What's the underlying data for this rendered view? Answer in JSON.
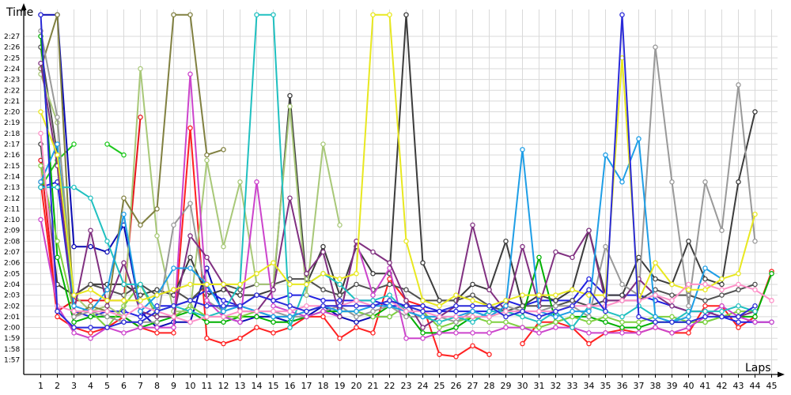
{
  "chart_data": {
    "type": "line",
    "xlabel": "Laps",
    "ylabel": "Time",
    "x": [
      1,
      2,
      3,
      4,
      5,
      6,
      7,
      8,
      9,
      10,
      11,
      12,
      13,
      14,
      15,
      16,
      17,
      18,
      19,
      20,
      21,
      22,
      23,
      24,
      25,
      26,
      27,
      28,
      29,
      30,
      31,
      32,
      33,
      34,
      35,
      36,
      37,
      38,
      39,
      40,
      41,
      42,
      43,
      44,
      45
    ],
    "x_ticks": [
      "1",
      "2",
      "3",
      "4",
      "5",
      "6",
      "7",
      "8",
      "9",
      "10",
      "11",
      "12",
      "13",
      "14",
      "15",
      "16",
      "17",
      "18",
      "19",
      "20",
      "21",
      "22",
      "23",
      "24",
      "25",
      "26",
      "27",
      "28",
      "29",
      "30",
      "31",
      "32",
      "33",
      "34",
      "35",
      "36",
      "37",
      "38",
      "39",
      "40",
      "41",
      "42",
      "43",
      "44",
      "45"
    ],
    "y_ticks": [
      "1:57",
      "1:58",
      "1:59",
      "2:00",
      "2:01",
      "2:02",
      "2:03",
      "2:04",
      "2:05",
      "2:06",
      "2:07",
      "2:08",
      "2:09",
      "2:10",
      "2:11",
      "2:12",
      "2:13",
      "2:14",
      "2:15",
      "2:16",
      "2:17",
      "2:18",
      "2:19",
      "2:20",
      "2:21",
      "2:22",
      "2:23",
      "2:24",
      "2:25",
      "2:26",
      "2:27"
    ],
    "y_tick_values": [
      117,
      118,
      119,
      120,
      121,
      122,
      123,
      124,
      125,
      126,
      127,
      128,
      129,
      130,
      131,
      132,
      133,
      134,
      135,
      136,
      137,
      138,
      139,
      140,
      141,
      142,
      143,
      144,
      145,
      146,
      147
    ],
    "y_unit": "seconds",
    "xlim": [
      0.5,
      45.5
    ],
    "ylim": [
      115.5,
      149
    ],
    "grid": true,
    "legend": "none",
    "series": [
      {
        "color": "#e8121a",
        "values": [
          135.5,
          121.5,
          122.5,
          122.5,
          122.5,
          122.5,
          139.5,
          null,
          null,
          null,
          null,
          null,
          null,
          null,
          null,
          null,
          null,
          null,
          null,
          null,
          null,
          null,
          null,
          null,
          null,
          null,
          null,
          null,
          null,
          null,
          null,
          null,
          null,
          null,
          null,
          null,
          null,
          null,
          null,
          null,
          null,
          null,
          null,
          null,
          null
        ]
      },
      {
        "color": "#1ec81e",
        "values": [
          133,
          135.5,
          137,
          null,
          137,
          136,
          null,
          null,
          null,
          null,
          null,
          null,
          null,
          null,
          null,
          null,
          null,
          null,
          null,
          null,
          null,
          null,
          null,
          null,
          null,
          null,
          null,
          null,
          null,
          null,
          null,
          null,
          null,
          null,
          null,
          null,
          null,
          null,
          null,
          null,
          null,
          null,
          null,
          null,
          null
        ]
      },
      {
        "color": "#ff2020",
        "values": [
          133.5,
          121,
          120,
          119.5,
          120,
          121,
          120,
          119.5,
          119.5,
          138.5,
          119,
          118.5,
          119,
          120,
          119.5,
          120,
          121,
          121,
          119,
          120,
          119.5,
          124.5,
          122.5,
          122,
          117.5,
          117.3,
          118.3,
          117.5,
          null,
          118.5,
          120.5,
          120.5,
          120,
          118.5,
          119.5,
          119.8,
          119.5,
          120,
          119.5,
          119.5,
          122,
          122,
          120,
          121,
          125.2
        ]
      },
      {
        "color": "#0a0ab4",
        "values": [
          149,
          149,
          127.5,
          127.5,
          127,
          129.5,
          121.5,
          120,
          120.5,
          120.5,
          125.5,
          121,
          120.5,
          121,
          121,
          120.5,
          121,
          122,
          121,
          120.5,
          121,
          121,
          null,
          null,
          null,
          null,
          null,
          null,
          null,
          null,
          null,
          null,
          null,
          null,
          null,
          null,
          null,
          null,
          null,
          null,
          null,
          null,
          null,
          null,
          null
        ]
      },
      {
        "color": "#2020e0",
        "values": [
          133,
          133.5,
          121.5,
          121,
          121.5,
          121.5,
          121,
          122,
          122,
          122.5,
          123.5,
          122.5,
          122,
          123,
          122.5,
          123,
          123,
          122.5,
          122.5,
          122.5,
          122.5,
          122,
          122,
          122,
          121.5,
          121.5,
          121.5,
          121.5,
          122.5,
          122,
          122.5,
          122.5,
          122.5,
          124.5,
          123,
          123,
          123,
          122.5,
          122,
          121.5,
          121.5,
          121,
          120.5,
          120.5,
          120.5
        ]
      },
      {
        "color": "#3c3c3c",
        "values": [
          137,
          124,
          123,
          124,
          124,
          124,
          123,
          123.5,
          123,
          126.5,
          123,
          123.5,
          123,
          123,
          123.5,
          141.5,
          124,
          127.5,
          123,
          127.5,
          125,
          125,
          149,
          126,
          122.5,
          122.5,
          124,
          123.5,
          128,
          122,
          123,
          122.5,
          123.5,
          129,
          123,
          123,
          126.5,
          124.5,
          124,
          128,
          124.5,
          124,
          133.5,
          140,
          null
        ]
      },
      {
        "color": "#505050",
        "values": [
          146,
          136,
          123,
          124,
          123.5,
          123,
          124,
          123,
          123.5,
          122.5,
          124,
          124,
          123.5,
          124,
          124,
          124.5,
          124.5,
          123.5,
          123,
          124,
          123.5,
          124,
          123.5,
          122.5,
          122.5,
          122.5,
          123,
          122,
          121.5,
          122,
          122,
          122,
          122.5,
          122,
          122.5,
          122.5,
          122.5,
          123.5,
          123,
          123,
          122.5,
          123,
          123.5,
          124,
          null
        ]
      },
      {
        "color": "#00b000",
        "values": [
          147,
          126.5,
          120.5,
          121,
          121,
          121,
          120,
          120.5,
          121,
          121.5,
          120.5,
          120.5,
          121,
          121,
          120.5,
          120.5,
          121,
          121.5,
          121.5,
          121.5,
          121,
          122,
          121.5,
          119.5,
          119.5,
          120,
          121,
          121,
          121.5,
          121,
          126.5,
          120.5,
          121,
          121,
          120.5,
          120,
          120,
          120.5,
          120.5,
          120.5,
          120.5,
          121,
          121,
          121,
          125
        ]
      },
      {
        "color": "#7fd040",
        "values": [
          135,
          128,
          121.5,
          121.5,
          120,
          122,
          124,
          121,
          121,
          122,
          121,
          121,
          121,
          121.5,
          121,
          121,
          121.5,
          122,
          121.5,
          121.5,
          121,
          121,
          122,
          121.5,
          120,
          120.5,
          121,
          120.5,
          120.5,
          120,
          120,
          120.5,
          121,
          120.5,
          121,
          120.5,
          120.5,
          121,
          121,
          120.5,
          120.5,
          121,
          121.5,
          121.5,
          null
        ]
      },
      {
        "color": "#a8c878",
        "values": [
          143.5,
          139,
          123,
          121.5,
          122,
          121,
          144,
          128.5,
          121.5,
          121.5,
          135.5,
          127.5,
          133.5,
          124,
          124,
          140.5,
          123,
          137,
          129.5,
          null,
          null,
          null,
          null,
          null,
          null,
          null,
          null,
          null,
          null,
          null,
          null,
          null,
          null,
          null,
          null,
          null,
          null,
          null,
          null,
          null,
          null,
          null,
          null,
          null,
          null
        ]
      },
      {
        "color": "#808040",
        "values": [
          144,
          149,
          121,
          122,
          121.5,
          132,
          129.5,
          131,
          149,
          149,
          136,
          136.5,
          null,
          null,
          null,
          null,
          null,
          null,
          null,
          null,
          null,
          null,
          null,
          null,
          null,
          null,
          null,
          null,
          null,
          null,
          null,
          null,
          null,
          null,
          null,
          null,
          null,
          null,
          null,
          null,
          null,
          null,
          null,
          null,
          null
        ]
      },
      {
        "color": "#999999",
        "values": [
          147.5,
          139.5,
          121,
          121.5,
          121,
          120.5,
          120.5,
          120.5,
          129.5,
          131.5,
          122.5,
          121.5,
          122,
          121.5,
          121.5,
          121,
          121,
          121.5,
          122,
          121,
          121.5,
          122,
          121,
          121,
          121,
          120.5,
          121.5,
          121,
          122,
          121.5,
          121.5,
          122,
          122,
          121,
          127.5,
          124,
          123,
          146,
          133.5,
          122,
          133.5,
          129,
          142.5,
          128,
          null
        ]
      },
      {
        "color": "#cc44cc",
        "values": [
          130,
          122,
          119.5,
          119,
          120,
          119.5,
          120,
          120,
          120,
          143.5,
          122.5,
          121,
          120.5,
          133.5,
          122,
          121.5,
          121,
          121.5,
          121,
          128,
          123,
          125.5,
          119,
          119,
          119.5,
          119.5,
          119.5,
          119.5,
          120,
          120,
          119.5,
          120,
          120,
          119.5,
          119.5,
          119.5,
          119.5,
          120,
          119.5,
          120,
          121,
          122,
          121,
          120.5,
          120.5
        ]
      },
      {
        "color": "#803080",
        "values": [
          144.5,
          135,
          121.5,
          129,
          122,
          126,
          121.5,
          121,
          121,
          128.5,
          126.5,
          124,
          121.5,
          121.5,
          123.5,
          132,
          125,
          127,
          121,
          128,
          127,
          126,
          122.5,
          120,
          121,
          122,
          129.5,
          123.5,
          121.5,
          127.5,
          122,
          127,
          126.5,
          129,
          122.5,
          122.5,
          124.5,
          123,
          122,
          121.5,
          121.5,
          121,
          121,
          121.5,
          null
        ]
      },
      {
        "color": "#20c0c0",
        "values": [
          133,
          133,
          133,
          132,
          128,
          124,
          124,
          121.5,
          122,
          121.5,
          121,
          121.5,
          124,
          149,
          149,
          120,
          124,
          125,
          124,
          122.5,
          122.5,
          123,
          121.5,
          121,
          120.5,
          121,
          120.5,
          121.5,
          121.5,
          121,
          120.5,
          121.5,
          120,
          122,
          121.5,
          121,
          122,
          121,
          120.5,
          121.5,
          121.5,
          121.5,
          122,
          121.5,
          null
        ]
      },
      {
        "color": "#1e9ee6",
        "values": [
          133.5,
          137,
          122,
          121.5,
          123.5,
          130.5,
          121.5,
          123,
          125.5,
          125.5,
          124,
          121.5,
          122,
          121.5,
          121,
          121,
          121.5,
          122,
          121.5,
          121.5,
          122,
          122,
          121.5,
          121,
          121,
          121,
          121.5,
          121,
          122,
          136.5,
          121.5,
          121,
          121.5,
          121.5,
          136,
          133.5,
          137.5,
          121,
          120.5,
          121,
          125.5,
          124.5,
          null,
          null,
          null
        ]
      },
      {
        "color": "#e8e820",
        "values": [
          140,
          136,
          123,
          123.5,
          122.5,
          122.5,
          122.5,
          123,
          123.5,
          124,
          124,
          124,
          124,
          125,
          126,
          124,
          124,
          125,
          124.5,
          125,
          149,
          149,
          128,
          122.5,
          122,
          123,
          122.5,
          122,
          122.5,
          123,
          123,
          123,
          123.5,
          123,
          123,
          145,
          122.5,
          126,
          124,
          123.5,
          123.5,
          124.5,
          125,
          130.5,
          null
        ]
      },
      {
        "color": "#ff90c8",
        "values": [
          138,
          122,
          121.5,
          121.5,
          121.5,
          121,
          122,
          121.5,
          121,
          120.5,
          121,
          121,
          121.5,
          121.5,
          121.5,
          121.5,
          122,
          122,
          122,
          122.5,
          122,
          122.5,
          121.5,
          121.5,
          121,
          121,
          121,
          121,
          121.5,
          121.5,
          121.5,
          121.5,
          122,
          122,
          122,
          122.5,
          122.5,
          123,
          122.5,
          124,
          124,
          123.5,
          124,
          123.5,
          122.5
        ]
      },
      {
        "color": "#2a2ad8",
        "values": [
          149,
          121.5,
          120,
          120,
          120,
          120.5,
          120.5,
          121.5,
          122,
          122.5,
          122,
          122,
          122,
          123,
          122.5,
          122,
          121.5,
          122,
          122,
          122,
          122,
          122.5,
          122,
          121.5,
          121.5,
          122,
          122,
          122,
          121,
          121.5,
          121,
          121.5,
          122,
          123.5,
          121.5,
          149,
          121,
          120.5,
          120.5,
          120.5,
          121,
          121,
          121,
          122,
          null
        ]
      }
    ]
  }
}
